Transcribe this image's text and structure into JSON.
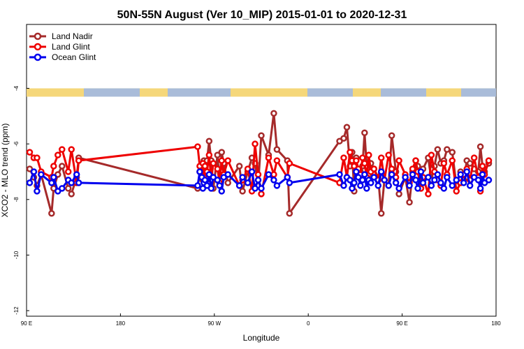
{
  "chart_data": {
    "type": "line",
    "title": "50N-55N August (Ver 10_MIP)   2015-01-01 to 2020-12-31",
    "xlabel": "Longitude",
    "ylabel": "XCO2 - MLO trend (ppm)",
    "xlim": [
      90,
      540
    ],
    "ylim": [
      -12.2,
      -1.7
    ],
    "x_ticks": [
      {
        "value": 90,
        "label": "90 E"
      },
      {
        "value": 180,
        "label": "180"
      },
      {
        "value": 270,
        "label": "90 W"
      },
      {
        "value": 360,
        "label": "0"
      },
      {
        "value": 450,
        "label": "90 E"
      },
      {
        "value": 540,
        "label": "180"
      }
    ],
    "y_ticks": [
      {
        "value": -4,
        "label": "-4"
      },
      {
        "value": -6,
        "label": "-6"
      },
      {
        "value": -8,
        "label": "-8"
      },
      {
        "value": -10,
        "label": "-10"
      },
      {
        "value": -12,
        "label": "-12"
      }
    ],
    "land_ocean_band": {
      "y_range": [
        -4.3,
        -4.0
      ],
      "land_color": "#f5d77a",
      "ocean_color": "#a9bcd9"
    },
    "legend_position": "top-left",
    "series": [
      {
        "name": "Land Nadir",
        "color": "#a52a2a",
        "x": [
          93,
          97,
          100,
          104,
          114,
          116,
          120,
          124,
          130,
          133,
          138,
          140,
          254,
          256,
          258,
          259,
          260,
          261,
          263,
          265,
          267,
          269,
          273,
          275,
          277,
          279,
          283,
          294,
          297,
          302,
          306,
          309,
          312,
          315,
          322,
          327,
          330,
          340,
          342,
          390,
          394,
          397,
          400,
          402,
          404,
          406,
          408,
          410,
          412,
          414,
          416,
          418,
          420,
          423,
          427,
          430,
          433,
          437,
          440,
          444,
          447,
          453,
          457,
          460,
          463,
          465,
          468,
          470,
          475,
          478,
          481,
          484,
          487,
          490,
          493,
          498,
          502,
          506,
          509,
          512,
          515,
          519,
          523,
          525,
          527,
          529,
          533
        ],
        "y": [
          -6.9,
          -7.2,
          -7.5,
          -7.1,
          -8.5,
          -7.6,
          -7.1,
          -6.8,
          -7.6,
          -7.8,
          -7.2,
          -6.5,
          -7.6,
          -7.0,
          -6.8,
          -7.3,
          -6.6,
          -7.0,
          -6.6,
          -5.9,
          -6.6,
          -7.6,
          -6.4,
          -7.4,
          -6.3,
          -6.7,
          -7.4,
          -6.8,
          -7.7,
          -7.0,
          -6.5,
          -6.7,
          -7.5,
          -5.7,
          -6.4,
          -4.9,
          -6.2,
          -6.6,
          -8.5,
          -5.9,
          -5.8,
          -5.4,
          -6.8,
          -6.3,
          -7.7,
          -6.5,
          -7.1,
          -7.0,
          -6.8,
          -5.6,
          -6.8,
          -7.1,
          -6.7,
          -6.9,
          -7.2,
          -8.5,
          -7.3,
          -7.5,
          -5.7,
          -7.0,
          -7.8,
          -7.2,
          -8.1,
          -7.0,
          -6.6,
          -6.8,
          -7.6,
          -6.9,
          -6.5,
          -7.3,
          -6.8,
          -6.2,
          -6.7,
          -6.6,
          -6.2,
          -6.3,
          -7.5,
          -7.0,
          -7.3,
          -6.6,
          -6.7,
          -6.9,
          -7.0,
          -6.1,
          -6.8,
          -7.0,
          -6.7
        ]
      },
      {
        "name": "Land Glint",
        "color": "#ee0000",
        "x": [
          93,
          97,
          100,
          104,
          114,
          116,
          120,
          124,
          130,
          133,
          138,
          140,
          254,
          256,
          258,
          259,
          260,
          261,
          263,
          265,
          267,
          269,
          273,
          275,
          277,
          279,
          283,
          294,
          297,
          302,
          306,
          309,
          312,
          315,
          322,
          327,
          330,
          340,
          342,
          390,
          394,
          397,
          400,
          402,
          404,
          406,
          408,
          410,
          412,
          414,
          416,
          418,
          420,
          423,
          427,
          430,
          433,
          437,
          440,
          444,
          447,
          453,
          457,
          460,
          463,
          465,
          468,
          470,
          475,
          478,
          481,
          484,
          487,
          490,
          493,
          498,
          502,
          506,
          509,
          512,
          515,
          519,
          523,
          525,
          527,
          529,
          533
        ],
        "y": [
          -6.3,
          -6.5,
          -6.5,
          -7.0,
          -7.2,
          -6.8,
          -6.4,
          -6.2,
          -7.0,
          -6.2,
          -7.4,
          -6.6,
          -6.1,
          -6.8,
          -7.2,
          -6.7,
          -7.2,
          -6.8,
          -7.0,
          -6.4,
          -7.3,
          -6.7,
          -6.9,
          -7.4,
          -6.6,
          -7.1,
          -6.6,
          -7.5,
          -7.3,
          -6.9,
          -7.7,
          -6.0,
          -7.1,
          -7.8,
          -6.5,
          -7.1,
          -6.6,
          -7.2,
          -6.7,
          -7.4,
          -6.5,
          -7.2,
          -6.3,
          -6.6,
          -6.8,
          -6.6,
          -6.9,
          -7.1,
          -6.5,
          -6.7,
          -7.2,
          -6.4,
          -7.0,
          -6.9,
          -7.3,
          -6.5,
          -7.3,
          -6.4,
          -6.9,
          -7.2,
          -6.6,
          -7.1,
          -7.4,
          -6.9,
          -6.6,
          -7.0,
          -7.6,
          -7.2,
          -7.8,
          -6.4,
          -7.0,
          -7.3,
          -7.5,
          -6.7,
          -7.1,
          -6.6,
          -7.7,
          -7.4,
          -7.1,
          -6.9,
          -7.3,
          -6.5,
          -7.2,
          -7.7,
          -6.8,
          -7.1,
          -6.6
        ]
      },
      {
        "name": "Ocean Glint",
        "color": "#0000ee",
        "x": [
          93,
          97,
          100,
          104,
          114,
          116,
          120,
          124,
          130,
          133,
          138,
          140,
          254,
          256,
          258,
          259,
          260,
          261,
          263,
          265,
          267,
          269,
          273,
          275,
          277,
          279,
          283,
          294,
          297,
          302,
          306,
          309,
          312,
          315,
          322,
          327,
          330,
          340,
          342,
          390,
          394,
          397,
          400,
          402,
          404,
          406,
          408,
          410,
          412,
          414,
          416,
          418,
          420,
          423,
          427,
          430,
          433,
          437,
          440,
          444,
          447,
          453,
          457,
          460,
          463,
          465,
          468,
          470,
          475,
          478,
          481,
          484,
          487,
          490,
          493,
          498,
          502,
          506,
          509,
          512,
          515,
          519,
          523,
          525,
          527,
          529,
          533
        ],
        "y": [
          -7.4,
          -7.0,
          -7.7,
          -7.1,
          -7.4,
          -7.2,
          -7.7,
          -7.6,
          -7.3,
          -7.4,
          -7.1,
          -7.4,
          -7.5,
          -7.0,
          -7.2,
          -7.6,
          -7.4,
          -7.3,
          -7.5,
          -7.1,
          -7.6,
          -7.2,
          -7.3,
          -7.5,
          -7.7,
          -7.2,
          -7.1,
          -7.5,
          -7.2,
          -7.4,
          -7.0,
          -7.6,
          -7.3,
          -7.6,
          -7.1,
          -7.3,
          -7.5,
          -7.2,
          -7.4,
          -7.1,
          -7.5,
          -7.2,
          -7.3,
          -7.6,
          -7.4,
          -7.0,
          -7.2,
          -7.5,
          -7.3,
          -7.1,
          -7.6,
          -7.3,
          -7.4,
          -7.2,
          -7.5,
          -7.0,
          -7.3,
          -7.5,
          -7.1,
          -7.4,
          -7.6,
          -7.2,
          -7.5,
          -7.1,
          -7.3,
          -7.6,
          -7.0,
          -7.4,
          -7.2,
          -7.5,
          -7.3,
          -7.1,
          -7.4,
          -7.6,
          -7.2,
          -7.5,
          -7.3,
          -7.1,
          -7.4,
          -7.0,
          -7.5,
          -7.2,
          -7.3,
          -7.6,
          -7.1,
          -7.4,
          -7.3
        ]
      }
    ]
  }
}
